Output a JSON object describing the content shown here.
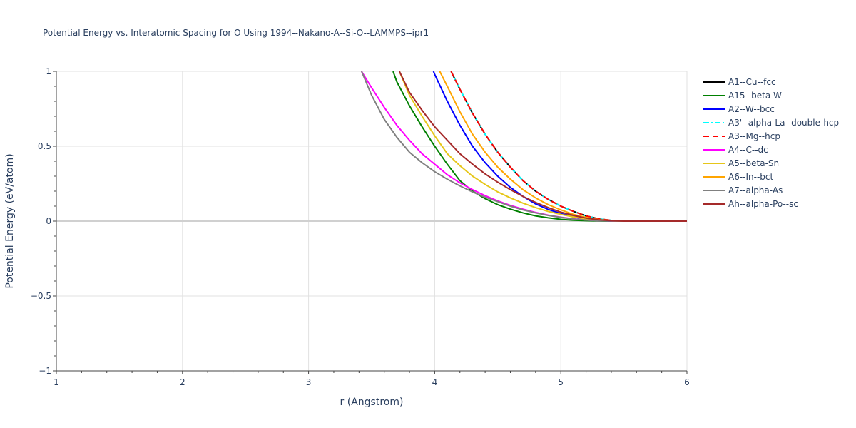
{
  "chart_data": {
    "type": "line",
    "title": "Potential Energy vs. Interatomic Spacing for O Using 1994--Nakano-A--Si-O--LAMMPS--ipr1",
    "xlabel": "r (Angstrom)",
    "ylabel": "Potential Energy (eV/atom)",
    "xlim": [
      1,
      6
    ],
    "ylim": [
      -1,
      1
    ],
    "x_ticks": [
      1,
      2,
      3,
      4,
      5,
      6
    ],
    "x_tick_labels": [
      "1",
      "2",
      "3",
      "4",
      "5",
      "6"
    ],
    "y_ticks": [
      -1,
      -0.5,
      0,
      0.5,
      1
    ],
    "y_tick_labels": [
      "−1",
      "−0.5",
      "0",
      "0.5",
      "1"
    ],
    "grid": true,
    "legend_position": "right",
    "series": [
      {
        "name": "A1--Cu--fcc",
        "color": "#000000",
        "dash": "solid",
        "x": [
          4.13,
          4.2,
          4.3,
          4.4,
          4.5,
          4.6,
          4.7,
          4.8,
          4.9,
          5.0,
          5.1,
          5.2,
          5.3,
          5.4,
          5.5,
          5.6,
          6.0
        ],
        "y": [
          1.0,
          0.88,
          0.72,
          0.58,
          0.46,
          0.36,
          0.27,
          0.2,
          0.145,
          0.1,
          0.065,
          0.035,
          0.015,
          0.005,
          0.0,
          0.0,
          0.0
        ]
      },
      {
        "name": "A15--beta-W",
        "color": "#008000",
        "dash": "solid",
        "x": [
          3.67,
          3.7,
          3.8,
          3.9,
          4.0,
          4.1,
          4.2,
          4.3,
          4.4,
          4.5,
          4.6,
          4.7,
          4.8,
          4.9,
          5.0,
          5.1,
          5.2,
          5.3,
          5.4,
          5.5,
          6.0
        ],
        "y": [
          1.0,
          0.93,
          0.77,
          0.63,
          0.5,
          0.38,
          0.27,
          0.2,
          0.15,
          0.11,
          0.08,
          0.055,
          0.035,
          0.022,
          0.012,
          0.006,
          0.003,
          0.001,
          0.0,
          0.0,
          0.0
        ]
      },
      {
        "name": "A2--W--bcc",
        "color": "#0000ff",
        "dash": "solid",
        "x": [
          3.99,
          4.0,
          4.1,
          4.2,
          4.3,
          4.4,
          4.5,
          4.6,
          4.7,
          4.8,
          4.9,
          5.0,
          5.1,
          5.2,
          5.3,
          5.4,
          5.5,
          6.0
        ],
        "y": [
          1.0,
          0.98,
          0.8,
          0.64,
          0.5,
          0.39,
          0.3,
          0.225,
          0.165,
          0.115,
          0.078,
          0.05,
          0.028,
          0.012,
          0.004,
          0.001,
          0.0,
          0.0
        ]
      },
      {
        "name": "A3'--alpha-La--double-hcp",
        "color": "#00ffff",
        "dash": "dashdot",
        "x": [
          4.13,
          4.2,
          4.3,
          4.4,
          4.5,
          4.6,
          4.7,
          4.8,
          4.9,
          5.0,
          5.1,
          5.2,
          5.3,
          5.4,
          5.5,
          5.6,
          6.0
        ],
        "y": [
          1.0,
          0.88,
          0.72,
          0.58,
          0.46,
          0.36,
          0.27,
          0.2,
          0.145,
          0.1,
          0.065,
          0.035,
          0.015,
          0.005,
          0.0,
          0.0,
          0.0
        ]
      },
      {
        "name": "A3--Mg--hcp",
        "color": "#ff0000",
        "dash": "dash",
        "x": [
          4.13,
          4.2,
          4.3,
          4.4,
          4.5,
          4.6,
          4.7,
          4.8,
          4.9,
          5.0,
          5.1,
          5.2,
          5.3,
          5.4,
          5.5,
          5.6,
          6.0
        ],
        "y": [
          1.0,
          0.88,
          0.72,
          0.58,
          0.46,
          0.36,
          0.27,
          0.2,
          0.145,
          0.1,
          0.065,
          0.035,
          0.015,
          0.005,
          0.0,
          0.0,
          0.0
        ]
      },
      {
        "name": "A4--C--dc",
        "color": "#ff00ff",
        "dash": "solid",
        "x": [
          3.42,
          3.5,
          3.6,
          3.7,
          3.8,
          3.9,
          4.0,
          4.1,
          4.2,
          4.3,
          4.4,
          4.5,
          4.6,
          4.7,
          4.8,
          4.9,
          5.0,
          5.1,
          5.2,
          5.3,
          5.4,
          5.5,
          6.0
        ],
        "y": [
          1.0,
          0.89,
          0.76,
          0.64,
          0.54,
          0.45,
          0.38,
          0.31,
          0.255,
          0.21,
          0.17,
          0.135,
          0.105,
          0.08,
          0.058,
          0.04,
          0.026,
          0.015,
          0.008,
          0.003,
          0.001,
          0.0,
          0.0
        ]
      },
      {
        "name": "A5--beta-Sn",
        "color": "#e6c619",
        "dash": "solid",
        "x": [
          3.72,
          3.8,
          3.9,
          4.0,
          4.1,
          4.2,
          4.3,
          4.4,
          4.5,
          4.6,
          4.7,
          4.8,
          4.9,
          5.0,
          5.1,
          5.2,
          5.3,
          5.4,
          5.5,
          6.0
        ],
        "y": [
          1.0,
          0.84,
          0.7,
          0.57,
          0.45,
          0.37,
          0.3,
          0.245,
          0.195,
          0.155,
          0.12,
          0.09,
          0.065,
          0.045,
          0.028,
          0.015,
          0.006,
          0.002,
          0.0,
          0.0
        ]
      },
      {
        "name": "A6--In--bct",
        "color": "#ffa500",
        "dash": "solid",
        "x": [
          4.04,
          4.1,
          4.2,
          4.3,
          4.4,
          4.5,
          4.6,
          4.7,
          4.8,
          4.9,
          5.0,
          5.1,
          5.2,
          5.3,
          5.4,
          5.5,
          6.0
        ],
        "y": [
          1.0,
          0.9,
          0.73,
          0.58,
          0.46,
          0.36,
          0.28,
          0.21,
          0.155,
          0.11,
          0.075,
          0.045,
          0.025,
          0.01,
          0.003,
          0.0,
          0.0
        ]
      },
      {
        "name": "A7--alpha-As",
        "color": "#808080",
        "dash": "solid",
        "x": [
          3.42,
          3.5,
          3.6,
          3.7,
          3.8,
          3.9,
          4.0,
          4.1,
          4.2,
          4.3,
          4.4,
          4.5,
          4.6,
          4.7,
          4.8,
          4.9,
          5.0,
          5.1,
          5.2,
          5.3,
          5.4,
          5.5,
          6.0
        ],
        "y": [
          1.0,
          0.84,
          0.68,
          0.56,
          0.46,
          0.39,
          0.33,
          0.28,
          0.235,
          0.195,
          0.16,
          0.13,
          0.1,
          0.075,
          0.055,
          0.038,
          0.025,
          0.014,
          0.007,
          0.003,
          0.001,
          0.0,
          0.0
        ]
      },
      {
        "name": "Ah--alpha-Po--sc",
        "color": "#a52a2a",
        "dash": "solid",
        "x": [
          3.72,
          3.8,
          3.9,
          4.0,
          4.1,
          4.2,
          4.3,
          4.4,
          4.5,
          4.6,
          4.7,
          4.8,
          4.9,
          5.0,
          5.1,
          5.2,
          5.3,
          5.4,
          5.5,
          6.0
        ],
        "y": [
          1.0,
          0.86,
          0.74,
          0.63,
          0.54,
          0.45,
          0.38,
          0.315,
          0.26,
          0.21,
          0.165,
          0.125,
          0.09,
          0.06,
          0.038,
          0.02,
          0.009,
          0.003,
          0.0,
          0.0
        ]
      }
    ]
  }
}
